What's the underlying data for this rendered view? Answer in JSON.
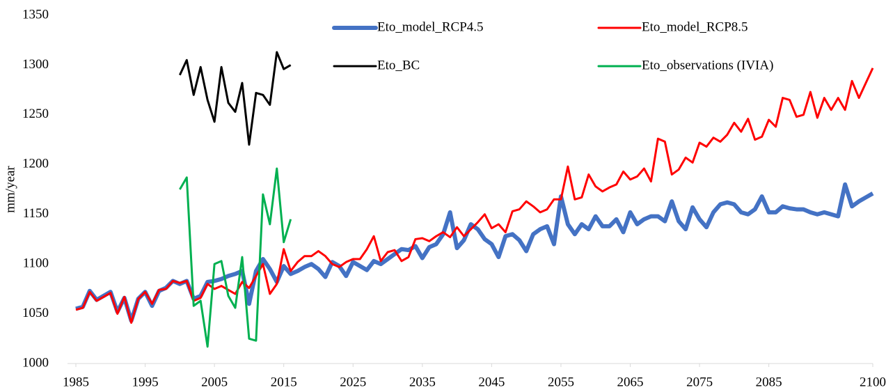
{
  "chart_data": {
    "type": "line",
    "y_label": "mm/year",
    "x": [
      1985,
      1986,
      1987,
      1988,
      1989,
      1990,
      1991,
      1992,
      1993,
      1994,
      1995,
      1996,
      1997,
      1998,
      1999,
      2000,
      2001,
      2002,
      2003,
      2004,
      2005,
      2006,
      2007,
      2008,
      2009,
      2010,
      2011,
      2012,
      2013,
      2014,
      2015,
      2016,
      2017,
      2018,
      2019,
      2020,
      2021,
      2022,
      2023,
      2024,
      2025,
      2026,
      2027,
      2028,
      2029,
      2030,
      2031,
      2032,
      2033,
      2034,
      2035,
      2036,
      2037,
      2038,
      2039,
      2040,
      2041,
      2042,
      2043,
      2044,
      2045,
      2046,
      2047,
      2048,
      2049,
      2050,
      2051,
      2052,
      2053,
      2054,
      2055,
      2056,
      2057,
      2058,
      2059,
      2060,
      2061,
      2062,
      2063,
      2064,
      2065,
      2066,
      2067,
      2068,
      2069,
      2070,
      2071,
      2072,
      2073,
      2074,
      2075,
      2076,
      2077,
      2078,
      2079,
      2080,
      2081,
      2082,
      2083,
      2084,
      2085,
      2086,
      2087,
      2088,
      2089,
      2090,
      2091,
      2092,
      2093,
      2094,
      2095,
      2096,
      2097,
      2098,
      2099,
      2100
    ],
    "series": [
      {
        "name": "Eto_model_RCP4.5",
        "color": "#4472c4",
        "width": 6,
        "values": [
          1055,
          1057,
          1073,
          1064,
          1068,
          1072,
          1052,
          1066,
          1043,
          1065,
          1072,
          1058,
          1073,
          1076,
          1083,
          1080,
          1083,
          1065,
          1068,
          1082,
          1083,
          1085,
          1088,
          1090,
          1093,
          1060,
          1093,
          1105,
          1095,
          1082,
          1098,
          1090,
          1093,
          1097,
          1100,
          1095,
          1087,
          1102,
          1098,
          1088,
          1102,
          1098,
          1094,
          1103,
          1100,
          1105,
          1110,
          1115,
          1114,
          1118,
          1106,
          1117,
          1120,
          1130,
          1152,
          1116,
          1124,
          1140,
          1135,
          1125,
          1120,
          1107,
          1128,
          1130,
          1124,
          1113,
          1130,
          1135,
          1138,
          1120,
          1168,
          1140,
          1130,
          1140,
          1135,
          1148,
          1138,
          1138,
          1145,
          1132,
          1152,
          1140,
          1145,
          1148,
          1148,
          1143,
          1163,
          1143,
          1135,
          1157,
          1145,
          1137,
          1152,
          1160,
          1162,
          1160,
          1152,
          1150,
          1155,
          1168,
          1152,
          1152,
          1158,
          1156,
          1155,
          1155,
          1152,
          1150,
          1152,
          1150,
          1148,
          1180,
          1158,
          1163,
          1167,
          1171
        ]
      },
      {
        "name": "Eto_model_RCP8.5",
        "color": "#ff0000",
        "width": 3,
        "values": [
          1054,
          1056,
          1072,
          1063,
          1067,
          1071,
          1050,
          1067,
          1041,
          1065,
          1072,
          1060,
          1074,
          1075,
          1083,
          1081,
          1083,
          1063,
          1066,
          1080,
          1075,
          1078,
          1074,
          1070,
          1082,
          1076,
          1088,
          1100,
          1070,
          1080,
          1115,
          1093,
          1102,
          1108,
          1108,
          1113,
          1108,
          1100,
          1097,
          1102,
          1105,
          1105,
          1115,
          1128,
          1103,
          1112,
          1114,
          1103,
          1107,
          1125,
          1126,
          1123,
          1128,
          1132,
          1127,
          1137,
          1128,
          1135,
          1142,
          1150,
          1136,
          1140,
          1132,
          1153,
          1155,
          1163,
          1158,
          1152,
          1155,
          1165,
          1165,
          1198,
          1165,
          1167,
          1190,
          1178,
          1173,
          1177,
          1180,
          1193,
          1185,
          1188,
          1196,
          1183,
          1226,
          1223,
          1190,
          1195,
          1207,
          1202,
          1222,
          1218,
          1227,
          1223,
          1230,
          1242,
          1233,
          1246,
          1225,
          1228,
          1245,
          1238,
          1267,
          1265,
          1248,
          1250,
          1273,
          1247,
          1267,
          1255,
          1267,
          1255,
          1284,
          1267,
          1282,
          1297
        ]
      },
      {
        "name": "Eto_BC",
        "color": "#000000",
        "width": 3,
        "values": [
          null,
          null,
          null,
          null,
          null,
          null,
          null,
          null,
          null,
          null,
          null,
          null,
          null,
          null,
          null,
          1290,
          1305,
          1270,
          1298,
          1265,
          1243,
          1298,
          1262,
          1253,
          1282,
          1220,
          1272,
          1270,
          1260,
          1313,
          1296,
          1300,
          null,
          null,
          null,
          null,
          null,
          null,
          null,
          null,
          null,
          null,
          null,
          null,
          null,
          null,
          null,
          null,
          null,
          null,
          null,
          null,
          null,
          null,
          null,
          null,
          null,
          null,
          null,
          null,
          null,
          null,
          null,
          null,
          null,
          null,
          null,
          null,
          null,
          null,
          null,
          null,
          null,
          null,
          null,
          null,
          null,
          null,
          null,
          null,
          null,
          null,
          null,
          null,
          null,
          null,
          null,
          null,
          null,
          null,
          null,
          null,
          null,
          null,
          null,
          null,
          null,
          null,
          null,
          null,
          null,
          null,
          null,
          null,
          null,
          null,
          null,
          null,
          null,
          null,
          null,
          null,
          null,
          null,
          null,
          null
        ]
      },
      {
        "name": "Eto_observations (IVIA)",
        "color": "#00b050",
        "width": 3,
        "values": [
          null,
          null,
          null,
          null,
          null,
          null,
          null,
          null,
          null,
          null,
          null,
          null,
          null,
          null,
          null,
          1175,
          1187,
          1058,
          1063,
          1017,
          1100,
          1103,
          1068,
          1056,
          1107,
          1025,
          1023,
          1170,
          1140,
          1196,
          1122,
          1145,
          null,
          null,
          null,
          null,
          null,
          null,
          null,
          null,
          null,
          null,
          null,
          null,
          null,
          null,
          null,
          null,
          null,
          null,
          null,
          null,
          null,
          null,
          null,
          null,
          null,
          null,
          null,
          null,
          null,
          null,
          null,
          null,
          null,
          null,
          null,
          null,
          null,
          null,
          null,
          null,
          null,
          null,
          null,
          null,
          null,
          null,
          null,
          null,
          null,
          null,
          null,
          null,
          null,
          null,
          null,
          null,
          null,
          null,
          null,
          null,
          null,
          null,
          null,
          null,
          null,
          null,
          null,
          null,
          null,
          null,
          null,
          null,
          null,
          null,
          null,
          null,
          null,
          null,
          null,
          null,
          null,
          null,
          null,
          null
        ]
      }
    ],
    "xlim": [
      1985,
      2100
    ],
    "xticks": [
      1985,
      1995,
      2005,
      2015,
      2025,
      2035,
      2045,
      2055,
      2065,
      2075,
      2085,
      2100
    ],
    "ylim": [
      1000,
      1350
    ],
    "yticks": [
      1000,
      1050,
      1100,
      1150,
      1200,
      1250,
      1300,
      1350
    ],
    "grid": false
  }
}
